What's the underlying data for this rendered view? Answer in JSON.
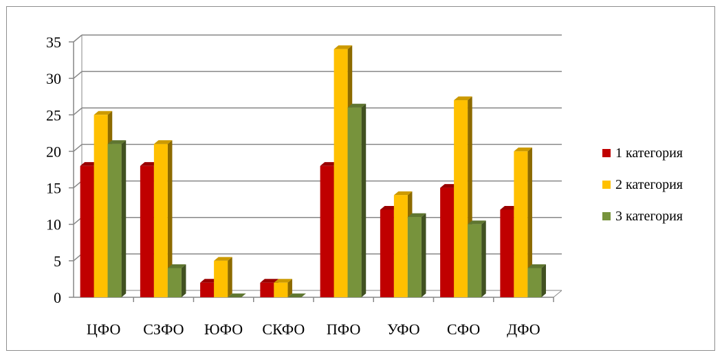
{
  "chart_data": {
    "type": "bar",
    "categories": [
      "ЦФО",
      "СЗФО",
      "ЮФО",
      "СКФО",
      "ПФО",
      "УФО",
      "СФО",
      "ДФО"
    ],
    "series": [
      {
        "name": "1 категория",
        "color": "#c00000",
        "values": [
          18,
          18,
          2,
          2,
          18,
          12,
          15,
          12
        ]
      },
      {
        "name": "2 категория",
        "color": "#ffc000",
        "values": [
          25,
          21,
          5,
          2,
          34,
          14,
          27,
          20
        ]
      },
      {
        "name": "3 категория",
        "color": "#77933c",
        "values": [
          21,
          4,
          0,
          0,
          26,
          11,
          10,
          4
        ]
      }
    ],
    "ylim": [
      0,
      35
    ],
    "yticks": [
      0,
      5,
      10,
      15,
      20,
      25,
      30,
      35
    ],
    "grid": true,
    "style": "3d-clustered-column",
    "legend": "right"
  }
}
